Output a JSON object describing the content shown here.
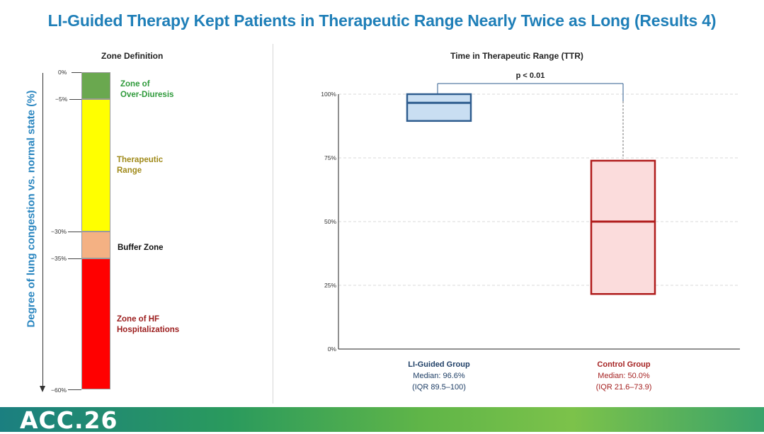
{
  "title": "LI-Guided Therapy Kept Patients in Therapeutic Range Nearly Twice as Long (Results 4)",
  "left_panel": {
    "title": "Zone Definition",
    "y_axis_label": "Degree of lung congestion vs. normal state (%)",
    "ticks": [
      "0%",
      "−5%",
      "−30%",
      "−35%",
      "−60%"
    ],
    "zones": [
      {
        "name": "Zone of Over-Diuresis",
        "label_line1": "Zone of",
        "label_line2": "Over-Diuresis",
        "range_pct": [
          0,
          -5
        ],
        "color": "#6aa84f",
        "text_color": "#2e9a3a"
      },
      {
        "name": "Therapeutic Range",
        "label_line1": "Therapeutic",
        "label_line2": "Range",
        "range_pct": [
          -5,
          -30
        ],
        "color": "#ffff00",
        "text_color": "#a08a1a"
      },
      {
        "name": "Buffer Zone",
        "label_line1": "Buffer Zone",
        "label_line2": "",
        "range_pct": [
          -30,
          -35
        ],
        "color": "#f4b183",
        "text_color": "#111111"
      },
      {
        "name": "Zone of HF Hospitalizations",
        "label_line1": "Zone of HF",
        "label_line2": "Hospitalizations",
        "range_pct": [
          -35,
          -60
        ],
        "color": "#ff0000",
        "text_color": "#9b1c1c"
      }
    ]
  },
  "chart_data": {
    "type": "box",
    "title": "Time in Therapeutic Range (TTR)",
    "ylabel": "",
    "ylim": [
      0,
      100
    ],
    "yticks": [
      0,
      25,
      50,
      75,
      100
    ],
    "ytick_labels": [
      "0%",
      "25%",
      "50%",
      "75%",
      "100%"
    ],
    "grid": true,
    "significance": "p < 0.01",
    "groups": [
      {
        "name": "LI-Guided Group",
        "median": 96.6,
        "q1": 89.5,
        "q3": 100,
        "median_label": "Median: 96.6%",
        "iqr_label": "(IQR 89.5–100)",
        "stroke": "#2f5d8f",
        "fill": "#c9def2",
        "text_color": "#1f3f66"
      },
      {
        "name": "Control Group",
        "median": 50.0,
        "q1": 21.6,
        "q3": 73.9,
        "median_label": "Median: 50.0%",
        "iqr_label": "(IQR 21.6–73.9)",
        "stroke": "#b01c1c",
        "fill": "#fbdcdc",
        "text_color": "#a52222"
      }
    ]
  },
  "footer": {
    "logo_text": "ACC.26",
    "colors": [
      "#1b7f80",
      "#5fb548"
    ]
  }
}
